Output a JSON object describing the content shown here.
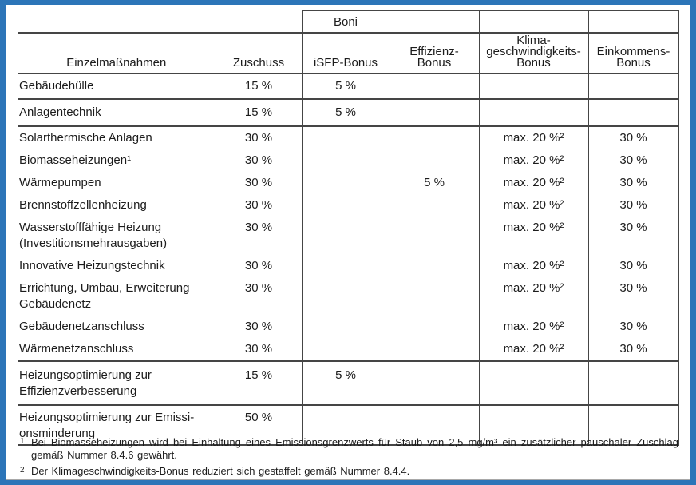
{
  "frame": {
    "border_color": "#2c75b8",
    "background": "#ffffff"
  },
  "table": {
    "boni_label": "Boni",
    "columns": [
      "Einzelmaßnahmen",
      "Zuschuss",
      "iSFP-Bonus",
      "Effizienz-\nBonus",
      "Klima-\ngeschwindigkeits-\nBonus",
      "Einkommens-\nBonus"
    ],
    "rows": [
      {
        "cells": [
          "Gebäudehülle",
          "15 %",
          "5 %",
          "",
          "",
          ""
        ]
      },
      {
        "cells": [
          "Anlagentechnik",
          "15 %",
          "5 %",
          "",
          "",
          ""
        ]
      },
      {
        "cells": [
          "Solarthermische Anlagen",
          "30 %",
          "",
          "",
          "max. 20 %²",
          "30 %"
        ]
      },
      {
        "cells": [
          "Biomasseheizungen¹",
          "30 %",
          "",
          "",
          "max. 20 %²",
          "30 %"
        ]
      },
      {
        "cells": [
          "Wärmepumpen",
          "30 %",
          "",
          "5 %",
          "max. 20 %²",
          "30 %"
        ]
      },
      {
        "cells": [
          "Brennstoffzellenheizung",
          "30 %",
          "",
          "",
          "max. 20 %²",
          "30 %"
        ]
      },
      {
        "cells": [
          "Wasserstofffähige Heizung\n(Investitionsmehrausgaben)",
          "30 %",
          "",
          "",
          "max. 20 %²",
          "30 %"
        ]
      },
      {
        "cells": [
          "Innovative Heizungstechnik",
          "30 %",
          "",
          "",
          "max. 20 %²",
          "30 %"
        ]
      },
      {
        "cells": [
          "Errichtung, Umbau, Erweiterung\nGebäudenetz",
          "30 %",
          "",
          "",
          "max. 20 %²",
          "30 %"
        ]
      },
      {
        "cells": [
          "Gebäudenetzanschluss",
          "30 %",
          "",
          "",
          "max. 20 %²",
          "30 %"
        ]
      },
      {
        "cells": [
          "Wärmenetzanschluss",
          "30 %",
          "",
          "",
          "max. 20 %²",
          "30 %"
        ]
      },
      {
        "cells": [
          "Heizungsoptimierung zur\nEffizienzverbesserung",
          "15 %",
          "5 %",
          "",
          "",
          ""
        ]
      },
      {
        "cells": [
          "Heizungsoptimierung zur Emissi-\nonsminderung",
          "50 %",
          "",
          "",
          "",
          ""
        ]
      }
    ]
  },
  "footnotes": [
    {
      "marker": "1",
      "text": "Bei Biomasseheizungen wird bei Einhaltung eines Emissionsgrenzwerts für Staub von 2,5 mg/m³ ein zusätzlicher pauschaler Zuschlag gemäß Nummer 8.4.6 gewährt."
    },
    {
      "marker": "2",
      "text": "Der Klimageschwindigkeits-Bonus reduziert sich gestaffelt gemäß Nummer 8.4.4."
    }
  ]
}
